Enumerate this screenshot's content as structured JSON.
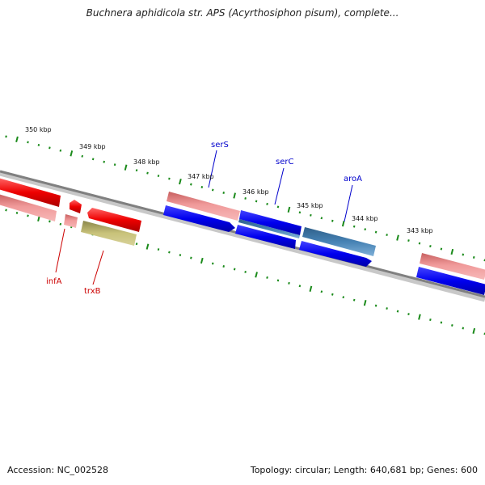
{
  "title": "Buchnera aphidicola str. APS (Acyrthosiphon pisum), complete...",
  "footer": {
    "accession": "Accession: NC_002528",
    "summary": "Topology: circular; Length: 640,681 bp; Genes: 600"
  },
  "ruler": [
    "350 kbp",
    "349 kbp",
    "348 kbp",
    "347 kbp",
    "346 kbp",
    "345 kbp",
    "344 kbp",
    "343 kbp"
  ],
  "genes": [
    {
      "name": "serS",
      "color": "#0000cc"
    },
    {
      "name": "serC",
      "color": "#0000cc"
    },
    {
      "name": "aroA",
      "color": "#0000cc"
    },
    {
      "name": "infA",
      "color": "#cc0000"
    },
    {
      "name": "trxB",
      "color": "#cc0000"
    }
  ],
  "colors": {
    "tick": "#1a8a1a",
    "backbone": "#888888",
    "red": "#ee0000",
    "pink": "#ee8888",
    "olive": "#bdb76b",
    "blue": "#0000ee",
    "steel": "#4682b4"
  }
}
